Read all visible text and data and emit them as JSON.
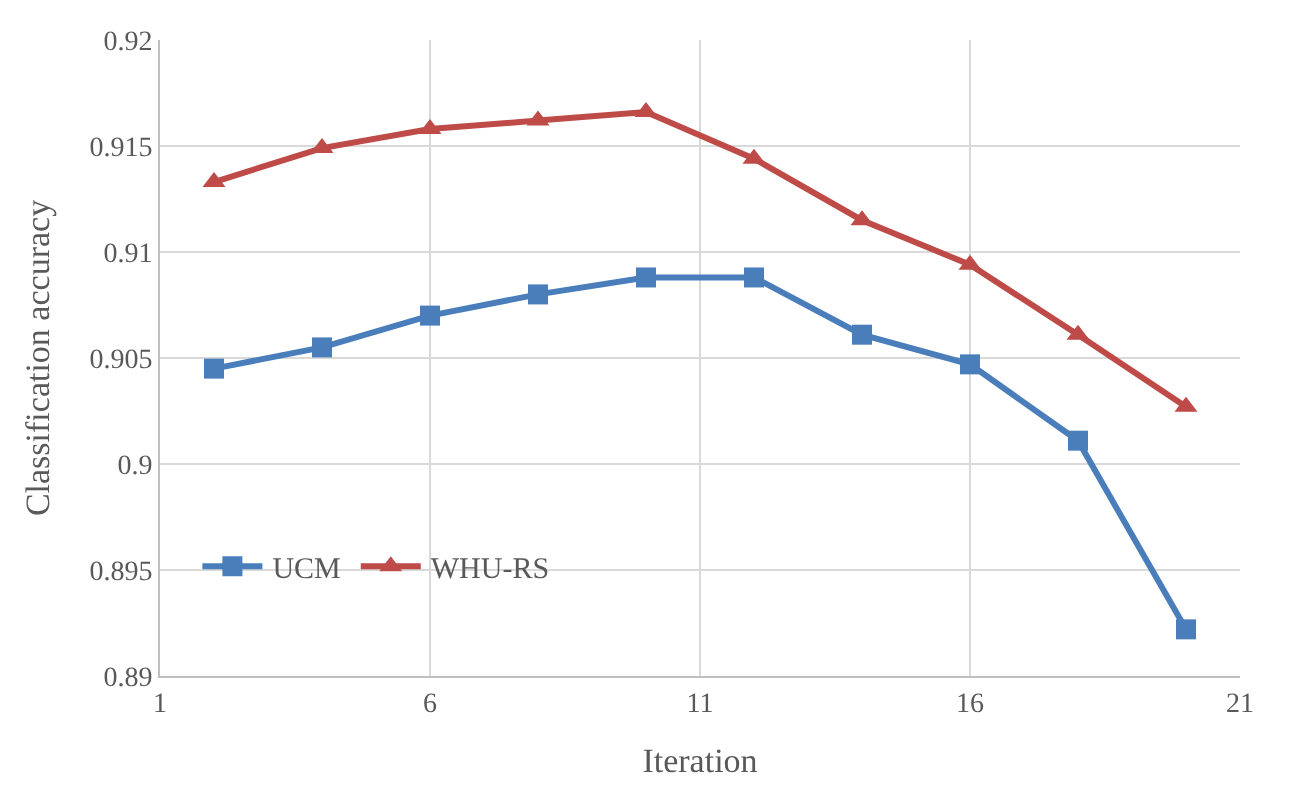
{
  "chart_data": {
    "type": "line",
    "xlabel": "Iteration",
    "ylabel": "Classification accuracy",
    "x": [
      2,
      4,
      6,
      8,
      10,
      12,
      14,
      16,
      18,
      20
    ],
    "series": [
      {
        "name": "UCM",
        "color": "#4a7ebb",
        "marker": "square",
        "values": [
          0.9045,
          0.9055,
          0.907,
          0.908,
          0.9088,
          0.9088,
          0.9061,
          0.9047,
          0.9011,
          0.8922
        ]
      },
      {
        "name": "WHU-RS",
        "color": "#be4b48",
        "marker": "triangle",
        "values": [
          0.9133,
          0.9149,
          0.9158,
          0.9162,
          0.9166,
          0.9144,
          0.9115,
          0.9094,
          0.9061,
          0.9027
        ]
      }
    ],
    "xlim": [
      1,
      21
    ],
    "xticks": [
      1,
      6,
      11,
      16,
      21
    ],
    "ylim": [
      0.89,
      0.92
    ],
    "yticks": [
      0.89,
      0.895,
      0.9,
      0.905,
      0.91,
      0.915,
      0.92
    ],
    "grid": true,
    "legend": "bottom left"
  }
}
